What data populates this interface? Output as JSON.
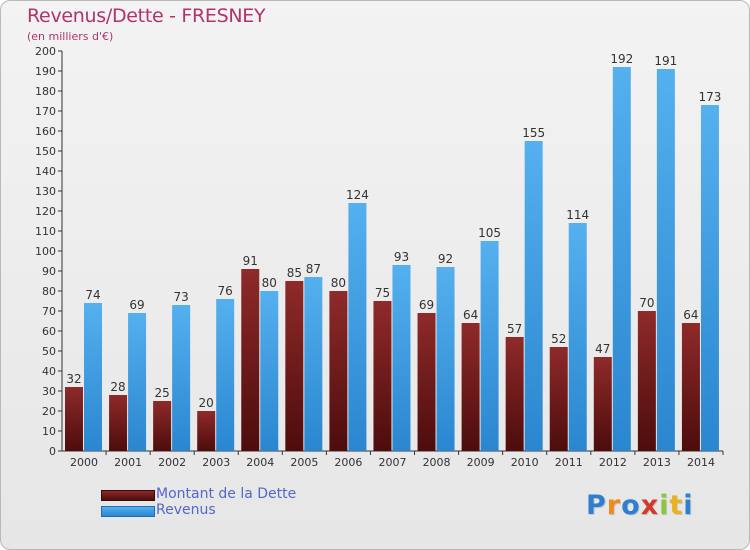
{
  "title": "Revenus/Dette - FRESNEY",
  "subtitle": "(en milliers d'€)",
  "colors": {
    "title": "#b0336b",
    "dette": "#7a1f1f",
    "revenus": "#3e9fe6",
    "legend_text": "#5566cc"
  },
  "legend": {
    "dette_label": "Montant de la Dette",
    "revenus_label": "Revenus"
  },
  "logo": {
    "text": "Proxiti",
    "letter_colors": [
      "#2f7fd0",
      "#f08a1c",
      "#2f7fd0",
      "#d33a2f",
      "#8dc63f",
      "#e8b21b",
      "#2f7fd0"
    ]
  },
  "chart_data": {
    "type": "bar",
    "title": "Revenus/Dette - FRESNEY",
    "subtitle": "(en milliers d'€)",
    "categories": [
      "2000",
      "2001",
      "2002",
      "2003",
      "2004",
      "2005",
      "2006",
      "2007",
      "2008",
      "2009",
      "2010",
      "2011",
      "2012",
      "2013",
      "2014"
    ],
    "series": [
      {
        "name": "Montant de la Dette",
        "values": [
          32,
          28,
          25,
          20,
          91,
          85,
          80,
          75,
          69,
          64,
          57,
          52,
          47,
          70,
          64
        ]
      },
      {
        "name": "Revenus",
        "values": [
          74,
          69,
          73,
          76,
          80,
          87,
          124,
          93,
          92,
          105,
          155,
          114,
          192,
          191,
          173
        ]
      }
    ],
    "ylim": [
      0,
      200
    ],
    "ytick_step": 10,
    "grid": false,
    "legend": "bottom-left"
  }
}
